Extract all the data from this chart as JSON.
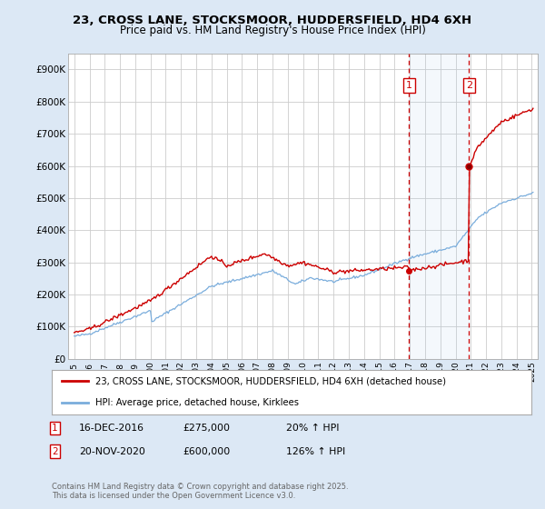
{
  "title_line1": "23, CROSS LANE, STOCKSMOOR, HUDDERSFIELD, HD4 6XH",
  "title_line2": "Price paid vs. HM Land Registry's House Price Index (HPI)",
  "ylabel_ticks": [
    "£0",
    "£100K",
    "£200K",
    "£300K",
    "£400K",
    "£500K",
    "£600K",
    "£700K",
    "£800K",
    "£900K"
  ],
  "ytick_values": [
    0,
    100000,
    200000,
    300000,
    400000,
    500000,
    600000,
    700000,
    800000,
    900000
  ],
  "ylim": [
    0,
    950000
  ],
  "xlim_start": 1994.6,
  "xlim_end": 2025.4,
  "red_line_color": "#cc0000",
  "blue_line_color": "#7aaddc",
  "vline_color": "#cc0000",
  "background_color": "#dce8f5",
  "plot_bg_color": "#ffffff",
  "legend_label_red": "23, CROSS LANE, STOCKSMOOR, HUDDERSFIELD, HD4 6XH (detached house)",
  "legend_label_blue": "HPI: Average price, detached house, Kirklees",
  "sale1_date": "16-DEC-2016",
  "sale1_price": "£275,000",
  "sale1_hpi": "20% ↑ HPI",
  "sale1_year": 2016.96,
  "sale1_value": 275000,
  "sale2_date": "20-NOV-2020",
  "sale2_price": "£600,000",
  "sale2_hpi": "126% ↑ HPI",
  "sale2_year": 2020.88,
  "sale2_value": 600000,
  "footer": "Contains HM Land Registry data © Crown copyright and database right 2025.\nThis data is licensed under the Open Government Licence v3.0.",
  "xtick_years": [
    1995,
    1996,
    1997,
    1998,
    1999,
    2000,
    2001,
    2002,
    2003,
    2004,
    2005,
    2006,
    2007,
    2008,
    2009,
    2010,
    2011,
    2012,
    2013,
    2014,
    2015,
    2016,
    2017,
    2018,
    2019,
    2020,
    2021,
    2022,
    2023,
    2024,
    2025
  ]
}
